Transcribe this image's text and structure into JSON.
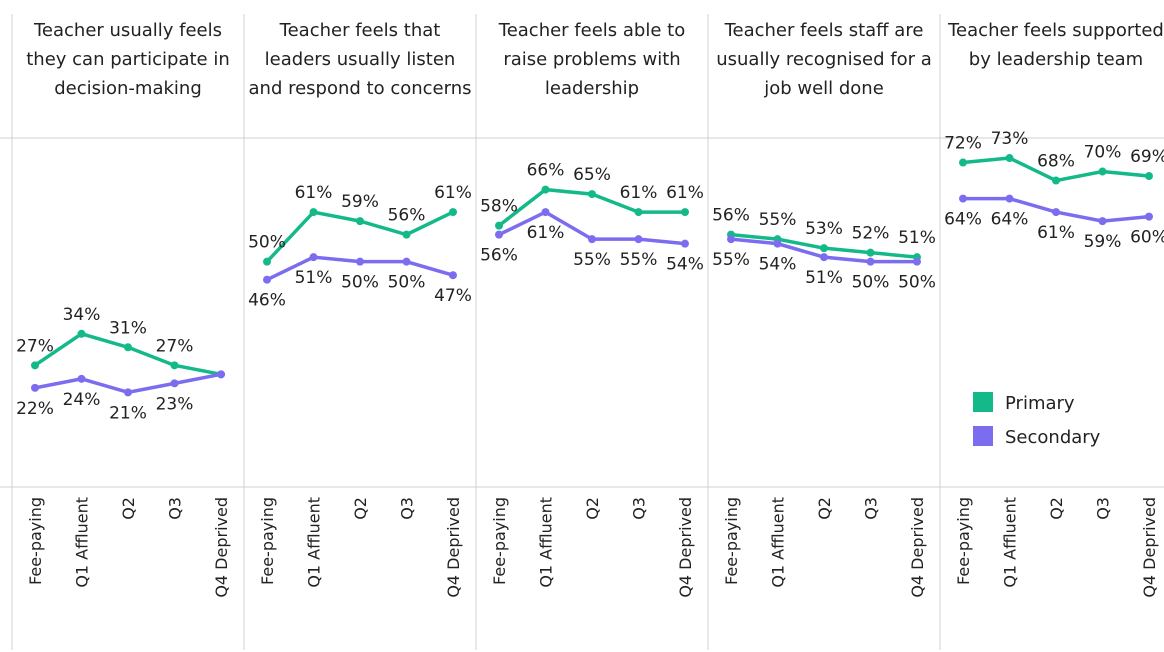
{
  "chart_data": [
    {
      "type": "line",
      "title": "Teacher usually feels they can participate in decision-making",
      "categories": [
        "Fee-paying",
        "Q1 Affluent",
        "Q2",
        "Q3",
        "Q4 Deprived"
      ],
      "ylim": [
        0,
        77
      ],
      "series": [
        {
          "name": "Primary",
          "color": "#14b98a",
          "values": [
            27,
            34,
            31,
            27,
            25
          ],
          "value_labels": [
            "27%",
            "34%",
            "31%",
            "27%",
            null
          ]
        },
        {
          "name": "Secondary",
          "color": "#7b6cf0",
          "values": [
            22,
            24,
            21,
            23,
            25
          ],
          "value_labels": [
            "22%",
            "24%",
            "21%",
            "23%",
            null
          ]
        }
      ]
    },
    {
      "type": "line",
      "title": "Teacher feels that leaders usually listen and respond to concerns",
      "categories": [
        "Fee-paying",
        "Q1 Affluent",
        "Q2",
        "Q3",
        "Q4 Deprived"
      ],
      "ylim": [
        0,
        77
      ],
      "series": [
        {
          "name": "Primary",
          "color": "#14b98a",
          "values": [
            50,
            61,
            59,
            56,
            61
          ],
          "value_labels": [
            "50%",
            "61%",
            "59%",
            "56%",
            "61%"
          ]
        },
        {
          "name": "Secondary",
          "color": "#7b6cf0",
          "values": [
            46,
            51,
            50,
            50,
            47
          ],
          "value_labels": [
            "46%",
            "51%",
            "50%",
            "50%",
            "47%"
          ]
        }
      ]
    },
    {
      "type": "line",
      "title": "Teacher feels able to raise problems with leadership",
      "categories": [
        "Fee-paying",
        "Q1 Affluent",
        "Q2",
        "Q3",
        "Q4 Deprived"
      ],
      "ylim": [
        0,
        77
      ],
      "series": [
        {
          "name": "Primary",
          "color": "#14b98a",
          "values": [
            58,
            66,
            65,
            61,
            61
          ],
          "value_labels": [
            "58%",
            "66%",
            "65%",
            "61%",
            "61%"
          ]
        },
        {
          "name": "Secondary",
          "color": "#7b6cf0",
          "values": [
            56,
            61,
            55,
            55,
            54
          ],
          "value_labels": [
            "56%",
            "61%",
            "55%",
            "55%",
            "54%"
          ]
        }
      ]
    },
    {
      "type": "line",
      "title": "Teacher feels staff are usually recognised for a job well done",
      "categories": [
        "Fee-paying",
        "Q1 Affluent",
        "Q2",
        "Q3",
        "Q4 Deprived"
      ],
      "ylim": [
        0,
        77
      ],
      "series": [
        {
          "name": "Primary",
          "color": "#14b98a",
          "values": [
            56,
            55,
            53,
            52,
            51
          ],
          "value_labels": [
            "56%",
            "55%",
            "53%",
            "52%",
            "51%"
          ]
        },
        {
          "name": "Secondary",
          "color": "#7b6cf0",
          "values": [
            55,
            54,
            51,
            50,
            50
          ],
          "value_labels": [
            "55%",
            "54%",
            "51%",
            "50%",
            "50%"
          ]
        }
      ]
    },
    {
      "type": "line",
      "title": "Teacher feels supported by leadership team",
      "categories": [
        "Fee-paying",
        "Q1 Affluent",
        "Q2",
        "Q3",
        "Q4 Deprived"
      ],
      "ylim": [
        0,
        77
      ],
      "legend": "right",
      "series": [
        {
          "name": "Primary",
          "color": "#14b98a",
          "values": [
            72,
            73,
            68,
            70,
            69
          ],
          "value_labels": [
            "72%",
            "73%",
            "68%",
            "70%",
            "69%"
          ]
        },
        {
          "name": "Secondary",
          "color": "#7b6cf0",
          "values": [
            64,
            64,
            61,
            59,
            60
          ],
          "value_labels": [
            "64%",
            "64%",
            "61%",
            "59%",
            "60%"
          ]
        }
      ]
    }
  ]
}
